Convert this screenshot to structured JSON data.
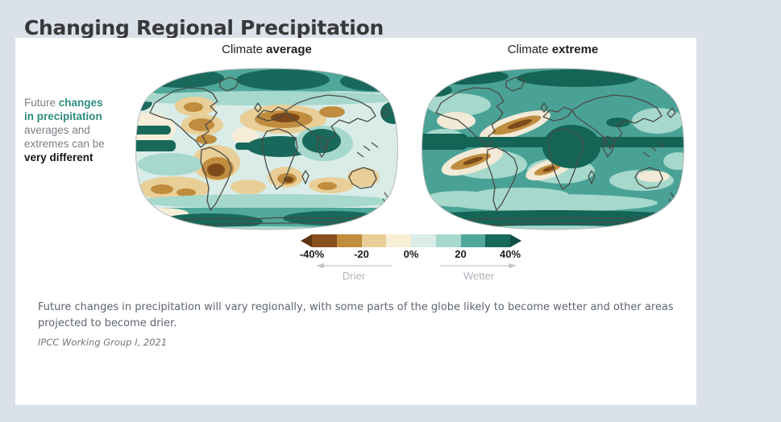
{
  "colors": {
    "page_background": "#dbe1e9",
    "card_background": "#ffffff",
    "accent_teal": "#2e8c7e",
    "title_text": "#38383a",
    "body_text": "#5e6570",
    "muted_text": "#b0b4ba"
  },
  "page": {
    "title": "Changing Regional Precipitation"
  },
  "note": {
    "line1_normal": "Future ",
    "line1_bold_teal": "changes",
    "line2_bold_teal": "in precipitation",
    "line3": "averages and",
    "line4": "extremes can be",
    "line5_bold": "very different"
  },
  "panels": [
    {
      "title_normal": "Climate ",
      "title_bold": "average"
    },
    {
      "title_normal": "Climate ",
      "title_bold": "extreme"
    }
  ],
  "legend": {
    "tick_labels": [
      "-40%",
      "-20",
      "0%",
      "20",
      "40%"
    ],
    "segment_colors": [
      "#8a4f1f",
      "#c08c3e",
      "#e9cf97",
      "#f7eed6",
      "#d9ece7",
      "#a6d8cc",
      "#4fa89a",
      "#18695b"
    ],
    "left_arrow_color": "#5f350f",
    "right_arrow_color": "#0d5043",
    "drier_label": "Drier",
    "wetter_label": "Wetter"
  },
  "caption": {
    "text": "Future changes in precipitation will vary regionally, with some parts of the globe likely to become wetter and other areas projected to become drier.",
    "source": "IPCC Working Group I, 2021"
  },
  "chart_data": {
    "type": "heatmap",
    "title": "Changing Regional Precipitation",
    "subtitle_note": "Future changes in precipitation averages and extremes can be very different",
    "panels": [
      {
        "title": "Climate average",
        "summary": "Drying up to -40% (browns) over the Amazon, Central America, the Mediterranean/North Africa, southern Africa, Australia and subtropical oceans; wetting up to +40% (teals) over high northern latitudes, the Sahel/central Africa, Arabian Sea/India, equatorial Pacific and the Southern Ocean."
      },
      {
        "title": "Climate extreme",
        "summary": "Wetting (teals) over nearly all land and high latitudes, strongest over central Africa and the equatorial band; narrow drying streaks (browns) confined to subtropical eastern Pacific and Atlantic ocean regions."
      }
    ],
    "colorscale": {
      "unit": "%",
      "min": -40,
      "max": 40,
      "ticks": [
        -40,
        -20,
        0,
        20,
        40
      ],
      "tick_labels": [
        "-40%",
        "-20",
        "0%",
        "20",
        "40%"
      ],
      "negative_label": "Drier",
      "positive_label": "Wetter",
      "colors": [
        "#8a4f1f",
        "#c08c3e",
        "#e9cf97",
        "#f7eed6",
        "#d9ece7",
        "#a6d8cc",
        "#4fa89a",
        "#18695b"
      ]
    },
    "source": "IPCC Working Group I, 2021"
  }
}
